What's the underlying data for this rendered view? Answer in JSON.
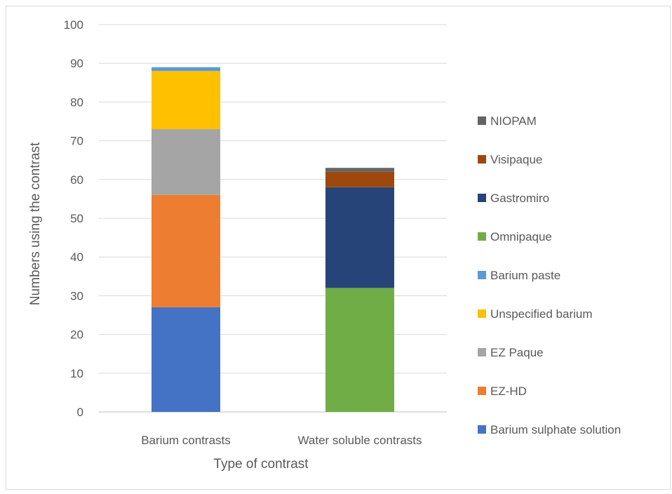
{
  "chart_data": {
    "type": "bar",
    "stacked": true,
    "title": "",
    "xlabel": "Type of contrast",
    "ylabel": "Numbers using the contrast",
    "ylim": [
      0,
      100
    ],
    "ytick_step": 10,
    "grid": true,
    "legend_position": "right",
    "categories": [
      "Barium contrasts",
      "Water soluble contrasts"
    ],
    "series": [
      {
        "name": "Barium sulphate solution",
        "color": "#4472C4",
        "values": [
          27,
          0
        ]
      },
      {
        "name": "EZ-HD",
        "color": "#ED7D31",
        "values": [
          29,
          0
        ]
      },
      {
        "name": "EZ Paque",
        "color": "#A5A5A5",
        "values": [
          17,
          0
        ]
      },
      {
        "name": "Unspecified barium",
        "color": "#FFC000",
        "values": [
          15,
          0
        ]
      },
      {
        "name": "Barium paste",
        "color": "#5B9BD5",
        "values": [
          1,
          0
        ]
      },
      {
        "name": "Omnipaque",
        "color": "#70AD47",
        "values": [
          0,
          32
        ]
      },
      {
        "name": "Gastromiro",
        "color": "#264478",
        "values": [
          0,
          26
        ]
      },
      {
        "name": "Visipaque",
        "color": "#9E480E",
        "values": [
          0,
          4
        ]
      },
      {
        "name": "NIOPAM",
        "color": "#636363",
        "values": [
          0,
          1
        ]
      }
    ]
  }
}
